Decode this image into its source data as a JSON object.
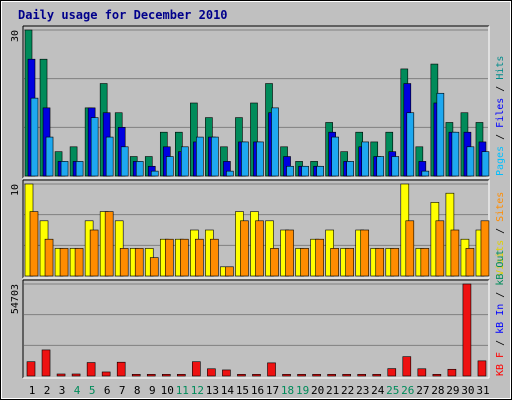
{
  "chart_data": {
    "type": "bar",
    "title": "Daily usage for December 2010",
    "days": [
      "1",
      "2",
      "3",
      "4",
      "5",
      "6",
      "7",
      "8",
      "9",
      "10",
      "11",
      "12",
      "13",
      "14",
      "15",
      "16",
      "17",
      "18",
      "19",
      "20",
      "21",
      "22",
      "23",
      "24",
      "25",
      "26",
      "27",
      "28",
      "29",
      "30",
      "31"
    ],
    "weekend_days": [
      "4",
      "5",
      "11",
      "12",
      "18",
      "19",
      "25",
      "26"
    ],
    "panels": [
      {
        "ymax_label": "30",
        "ymax": 30,
        "right_label": [
          {
            "text": "Pages",
            "color": "#00bfff"
          },
          {
            "text": " / ",
            "color": "#000000"
          },
          {
            "text": "Files",
            "color": "#0000ff"
          },
          {
            "text": " / ",
            "color": "#000000"
          },
          {
            "text": "Hits",
            "color": "#008b8b"
          }
        ],
        "series": [
          {
            "name": "Hits",
            "color": "#008b5a",
            "values": [
              30,
              24,
              5,
              6,
              14,
              19,
              13,
              4,
              4,
              9,
              9,
              15,
              12,
              6,
              12,
              15,
              19,
              6,
              3,
              3,
              11,
              5,
              9,
              7,
              9,
              22,
              6,
              23,
              11,
              13,
              11
            ]
          },
          {
            "name": "Files",
            "color": "#0000e0",
            "values": [
              24,
              14,
              3,
              3,
              14,
              13,
              10,
              3,
              2,
              6,
              5,
              7,
              8,
              3,
              7,
              7,
              13,
              4,
              2,
              2,
              9,
              3,
              6,
              4,
              5,
              19,
              3,
              15,
              9,
              9,
              7
            ]
          },
          {
            "name": "Pages",
            "color": "#1ea8f0",
            "values": [
              16,
              8,
              3,
              3,
              12,
              8,
              6,
              3,
              1,
              4,
              6,
              8,
              8,
              1,
              7,
              7,
              14,
              2,
              2,
              2,
              8,
              3,
              7,
              4,
              4,
              13,
              1,
              17,
              9,
              6,
              5
            ]
          }
        ]
      },
      {
        "ymax_label": "10",
        "ymax": 10,
        "right_label": [
          {
            "text": "Visits",
            "color": "#e0d000"
          },
          {
            "text": " / ",
            "color": "#000000"
          },
          {
            "text": "Sites",
            "color": "#ff8c00"
          }
        ],
        "series": [
          {
            "name": "Visits",
            "color": "#ffff00",
            "values": [
              10,
              6,
              3,
              3,
              6,
              7,
              6,
              3,
              3,
              4,
              4,
              5,
              5,
              1,
              7,
              7,
              6,
              5,
              3,
              4,
              5,
              3,
              5,
              3,
              3,
              10,
              3,
              8,
              9,
              4,
              5
            ]
          },
          {
            "name": "Sites",
            "color": "#ff8c00",
            "values": [
              7,
              4,
              3,
              3,
              5,
              7,
              3,
              3,
              2,
              4,
              4,
              4,
              4,
              1,
              6,
              6,
              3,
              5,
              3,
              4,
              3,
              3,
              5,
              3,
              3,
              6,
              3,
              6,
              5,
              3,
              6
            ]
          }
        ]
      },
      {
        "ymax_label": "54703",
        "ymax": 54703,
        "right_label": [
          {
            "text": "KB F",
            "color": "#ff0000"
          },
          {
            "text": " / ",
            "color": "#000000"
          },
          {
            "text": "kB In",
            "color": "#0000ff"
          },
          {
            "text": " / ",
            "color": "#000000"
          },
          {
            "text": "kB Out",
            "color": "#008b5a"
          }
        ],
        "series": [
          {
            "name": "kB F",
            "color": "#ee1111",
            "values": [
              8500,
              15500,
              1200,
              1200,
              8000,
              2400,
              8200,
              1000,
              1000,
              1000,
              1000,
              8500,
              4300,
              3600,
              1000,
              1000,
              7800,
              1000,
              1000,
              1000,
              1000,
              1000,
              1000,
              1000,
              4400,
              11500,
              4300,
              1000,
              4000,
              54703,
              9000
            ]
          }
        ]
      }
    ]
  }
}
